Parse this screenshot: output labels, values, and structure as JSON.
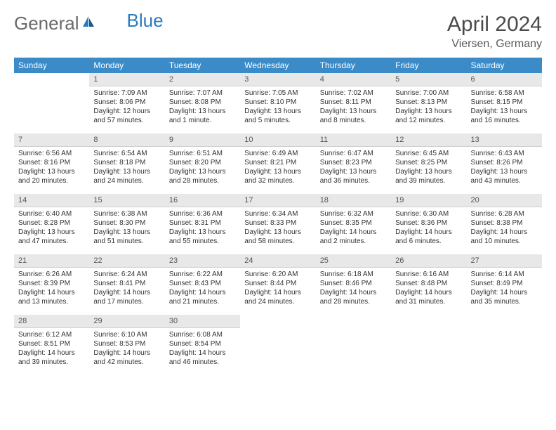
{
  "brand": {
    "part1": "General",
    "part2": "Blue"
  },
  "title": "April 2024",
  "location": "Viersen, Germany",
  "colors": {
    "header_bg": "#3b8bc9",
    "header_text": "#ffffff",
    "daynum_bg": "#e8e8e8",
    "logo_blue": "#2b7bbf",
    "text": "#333333"
  },
  "daynames": [
    "Sunday",
    "Monday",
    "Tuesday",
    "Wednesday",
    "Thursday",
    "Friday",
    "Saturday"
  ],
  "weeks": [
    [
      {
        "n": "",
        "sr": "",
        "ss": "",
        "d1": "",
        "d2": ""
      },
      {
        "n": "1",
        "sr": "Sunrise: 7:09 AM",
        "ss": "Sunset: 8:06 PM",
        "d1": "Daylight: 12 hours",
        "d2": "and 57 minutes."
      },
      {
        "n": "2",
        "sr": "Sunrise: 7:07 AM",
        "ss": "Sunset: 8:08 PM",
        "d1": "Daylight: 13 hours",
        "d2": "and 1 minute."
      },
      {
        "n": "3",
        "sr": "Sunrise: 7:05 AM",
        "ss": "Sunset: 8:10 PM",
        "d1": "Daylight: 13 hours",
        "d2": "and 5 minutes."
      },
      {
        "n": "4",
        "sr": "Sunrise: 7:02 AM",
        "ss": "Sunset: 8:11 PM",
        "d1": "Daylight: 13 hours",
        "d2": "and 8 minutes."
      },
      {
        "n": "5",
        "sr": "Sunrise: 7:00 AM",
        "ss": "Sunset: 8:13 PM",
        "d1": "Daylight: 13 hours",
        "d2": "and 12 minutes."
      },
      {
        "n": "6",
        "sr": "Sunrise: 6:58 AM",
        "ss": "Sunset: 8:15 PM",
        "d1": "Daylight: 13 hours",
        "d2": "and 16 minutes."
      }
    ],
    [
      {
        "n": "7",
        "sr": "Sunrise: 6:56 AM",
        "ss": "Sunset: 8:16 PM",
        "d1": "Daylight: 13 hours",
        "d2": "and 20 minutes."
      },
      {
        "n": "8",
        "sr": "Sunrise: 6:54 AM",
        "ss": "Sunset: 8:18 PM",
        "d1": "Daylight: 13 hours",
        "d2": "and 24 minutes."
      },
      {
        "n": "9",
        "sr": "Sunrise: 6:51 AM",
        "ss": "Sunset: 8:20 PM",
        "d1": "Daylight: 13 hours",
        "d2": "and 28 minutes."
      },
      {
        "n": "10",
        "sr": "Sunrise: 6:49 AM",
        "ss": "Sunset: 8:21 PM",
        "d1": "Daylight: 13 hours",
        "d2": "and 32 minutes."
      },
      {
        "n": "11",
        "sr": "Sunrise: 6:47 AM",
        "ss": "Sunset: 8:23 PM",
        "d1": "Daylight: 13 hours",
        "d2": "and 36 minutes."
      },
      {
        "n": "12",
        "sr": "Sunrise: 6:45 AM",
        "ss": "Sunset: 8:25 PM",
        "d1": "Daylight: 13 hours",
        "d2": "and 39 minutes."
      },
      {
        "n": "13",
        "sr": "Sunrise: 6:43 AM",
        "ss": "Sunset: 8:26 PM",
        "d1": "Daylight: 13 hours",
        "d2": "and 43 minutes."
      }
    ],
    [
      {
        "n": "14",
        "sr": "Sunrise: 6:40 AM",
        "ss": "Sunset: 8:28 PM",
        "d1": "Daylight: 13 hours",
        "d2": "and 47 minutes."
      },
      {
        "n": "15",
        "sr": "Sunrise: 6:38 AM",
        "ss": "Sunset: 8:30 PM",
        "d1": "Daylight: 13 hours",
        "d2": "and 51 minutes."
      },
      {
        "n": "16",
        "sr": "Sunrise: 6:36 AM",
        "ss": "Sunset: 8:31 PM",
        "d1": "Daylight: 13 hours",
        "d2": "and 55 minutes."
      },
      {
        "n": "17",
        "sr": "Sunrise: 6:34 AM",
        "ss": "Sunset: 8:33 PM",
        "d1": "Daylight: 13 hours",
        "d2": "and 58 minutes."
      },
      {
        "n": "18",
        "sr": "Sunrise: 6:32 AM",
        "ss": "Sunset: 8:35 PM",
        "d1": "Daylight: 14 hours",
        "d2": "and 2 minutes."
      },
      {
        "n": "19",
        "sr": "Sunrise: 6:30 AM",
        "ss": "Sunset: 8:36 PM",
        "d1": "Daylight: 14 hours",
        "d2": "and 6 minutes."
      },
      {
        "n": "20",
        "sr": "Sunrise: 6:28 AM",
        "ss": "Sunset: 8:38 PM",
        "d1": "Daylight: 14 hours",
        "d2": "and 10 minutes."
      }
    ],
    [
      {
        "n": "21",
        "sr": "Sunrise: 6:26 AM",
        "ss": "Sunset: 8:39 PM",
        "d1": "Daylight: 14 hours",
        "d2": "and 13 minutes."
      },
      {
        "n": "22",
        "sr": "Sunrise: 6:24 AM",
        "ss": "Sunset: 8:41 PM",
        "d1": "Daylight: 14 hours",
        "d2": "and 17 minutes."
      },
      {
        "n": "23",
        "sr": "Sunrise: 6:22 AM",
        "ss": "Sunset: 8:43 PM",
        "d1": "Daylight: 14 hours",
        "d2": "and 21 minutes."
      },
      {
        "n": "24",
        "sr": "Sunrise: 6:20 AM",
        "ss": "Sunset: 8:44 PM",
        "d1": "Daylight: 14 hours",
        "d2": "and 24 minutes."
      },
      {
        "n": "25",
        "sr": "Sunrise: 6:18 AM",
        "ss": "Sunset: 8:46 PM",
        "d1": "Daylight: 14 hours",
        "d2": "and 28 minutes."
      },
      {
        "n": "26",
        "sr": "Sunrise: 6:16 AM",
        "ss": "Sunset: 8:48 PM",
        "d1": "Daylight: 14 hours",
        "d2": "and 31 minutes."
      },
      {
        "n": "27",
        "sr": "Sunrise: 6:14 AM",
        "ss": "Sunset: 8:49 PM",
        "d1": "Daylight: 14 hours",
        "d2": "and 35 minutes."
      }
    ],
    [
      {
        "n": "28",
        "sr": "Sunrise: 6:12 AM",
        "ss": "Sunset: 8:51 PM",
        "d1": "Daylight: 14 hours",
        "d2": "and 39 minutes."
      },
      {
        "n": "29",
        "sr": "Sunrise: 6:10 AM",
        "ss": "Sunset: 8:53 PM",
        "d1": "Daylight: 14 hours",
        "d2": "and 42 minutes."
      },
      {
        "n": "30",
        "sr": "Sunrise: 6:08 AM",
        "ss": "Sunset: 8:54 PM",
        "d1": "Daylight: 14 hours",
        "d2": "and 46 minutes."
      },
      {
        "n": "",
        "sr": "",
        "ss": "",
        "d1": "",
        "d2": ""
      },
      {
        "n": "",
        "sr": "",
        "ss": "",
        "d1": "",
        "d2": ""
      },
      {
        "n": "",
        "sr": "",
        "ss": "",
        "d1": "",
        "d2": ""
      },
      {
        "n": "",
        "sr": "",
        "ss": "",
        "d1": "",
        "d2": ""
      }
    ]
  ]
}
